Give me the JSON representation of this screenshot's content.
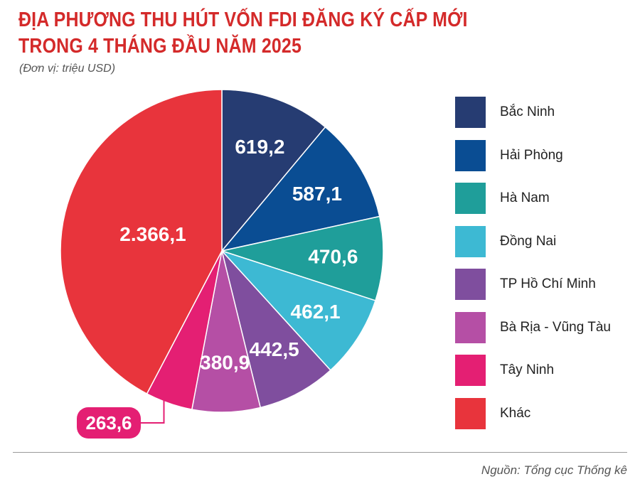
{
  "header": {
    "title_line1": "ĐỊA PHƯƠNG THU HÚT VỐN FDI ĐĂNG KÝ CẤP MỚI",
    "title_line2": "TRONG 4 THÁNG ĐẦU NĂM 2025",
    "unit": "(Đơn vị: triệu USD)"
  },
  "footer": {
    "source": "Nguồn: Tổng cục Thống kê"
  },
  "chart_data": {
    "type": "pie",
    "title": "ĐỊA PHƯƠNG THU HÚT VỐN FDI ĐĂNG KÝ CẤP MỚI TRONG 4 THÁNG ĐẦU NĂM 2025",
    "subtitle": "(Đơn vị: triệu USD)",
    "legend_position": "right",
    "slices": [
      {
        "label": "Bắc Ninh",
        "value": 619.2,
        "display": "619,2",
        "color": "#263c72"
      },
      {
        "label": "Hải Phòng",
        "value": 587.1,
        "display": "587,1",
        "color": "#0a4d93"
      },
      {
        "label": "Hà Nam",
        "value": 470.6,
        "display": "470,6",
        "color": "#1f9e9a"
      },
      {
        "label": "Đồng Nai",
        "value": 462.1,
        "display": "462,1",
        "color": "#3db9d3"
      },
      {
        "label": "TP Hồ Chí Minh",
        "value": 442.5,
        "display": "442,5",
        "color": "#7f4e9e"
      },
      {
        "label": "Bà Rịa - Vũng Tàu",
        "value": 380.9,
        "display": "380,9",
        "color": "#b54fa5"
      },
      {
        "label": "Tây Ninh",
        "value": 263.6,
        "display": "263,6",
        "color": "#e41f73"
      },
      {
        "label": "Khác",
        "value": 2366.1,
        "display": "2.366,1",
        "color": "#e8343c"
      }
    ]
  }
}
